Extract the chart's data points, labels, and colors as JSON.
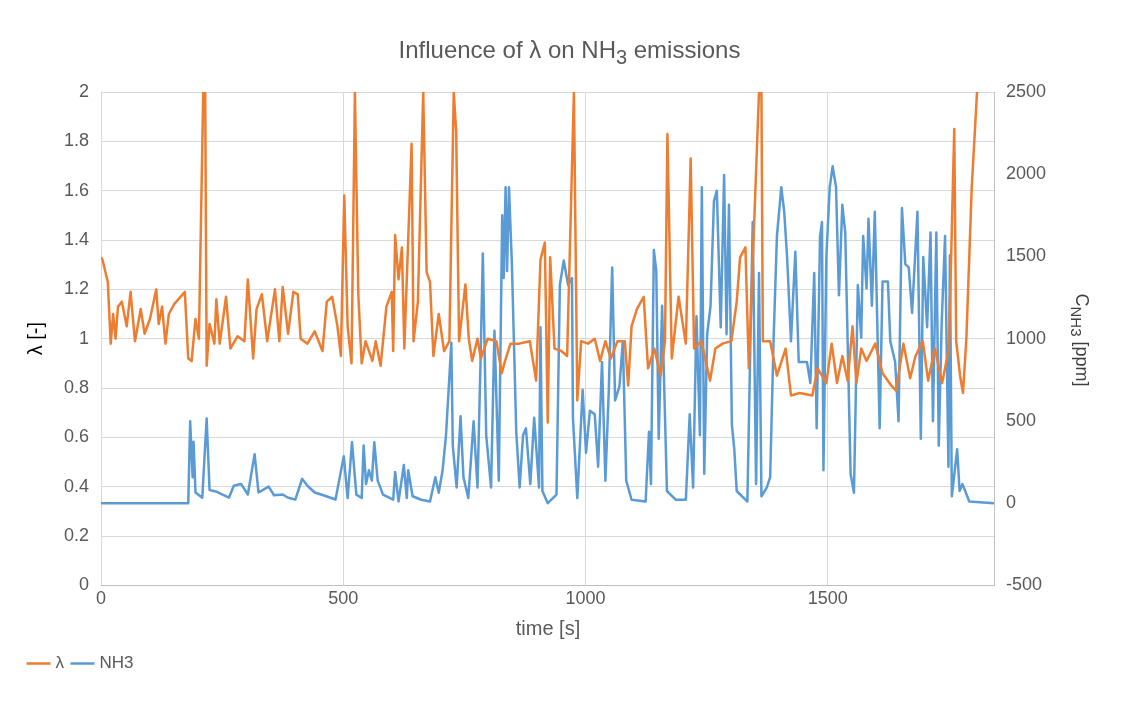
{
  "chart_data": {
    "type": "line",
    "title": "Influence of λ on NH$_{3}$ emissions",
    "xlabel": "time [s]",
    "ylabel": "λ [-]",
    "y2label": "C$_{NH3}$ [ppm]",
    "xlim": [
      0,
      1845
    ],
    "xticks": [
      0,
      500,
      1000,
      1500
    ],
    "ylim": [
      0,
      2
    ],
    "yticks": [
      0,
      0.2,
      0.4,
      0.6,
      0.8,
      1,
      1.2,
      1.4,
      1.6,
      1.8,
      2
    ],
    "y2lim": [
      -500,
      2500
    ],
    "y2ticks": [
      -500,
      0,
      500,
      1000,
      1500,
      2000,
      2500
    ],
    "grid": true,
    "legend": "bottom left",
    "marker": "none",
    "line_style": "solid",
    "series": [
      {
        "name": "λ",
        "color": "#ed7d31",
        "x": [
          0,
          3,
          14,
          20,
          25,
          30,
          35,
          43,
          53,
          61,
          70,
          82,
          90,
          101,
          114,
          119,
          126,
          133,
          140,
          151,
          173,
          180,
          187,
          195,
          202,
          211,
          215,
          218,
          224,
          234,
          238,
          245,
          258,
          267,
          282,
          296,
          303,
          314,
          321,
          332,
          343,
          359,
          368,
          375,
          386,
          397,
          406,
          412,
          426,
          441,
          457,
          466,
          477,
          488,
          495,
          502,
          509,
          517,
          524,
          531,
          538,
          546,
          560,
          567,
          577,
          589,
          600,
          603,
          607,
          614,
          621,
          626,
          641,
          645,
          654,
          665,
          672,
          679,
          686,
          697,
          708,
          719,
          728,
          733,
          739,
          752,
          759,
          766,
          777,
          784,
          798,
          816,
          827,
          834,
          845,
          863,
          885,
          898,
          907,
          916,
          922,
          927,
          936,
          950,
          962,
          976,
          983,
          991,
          1005,
          1019,
          1030,
          1041,
          1052,
          1066,
          1081,
          1088,
          1095,
          1106,
          1120,
          1129,
          1142,
          1155,
          1164,
          1169,
          1178,
          1192,
          1207,
          1217,
          1224,
          1239,
          1257,
          1268,
          1283,
          1301,
          1312,
          1319,
          1330,
          1337,
          1358,
          1363,
          1366,
          1381,
          1395,
          1413,
          1424,
          1442,
          1468,
          1479,
          1497,
          1508,
          1519,
          1530,
          1541,
          1551,
          1559,
          1569,
          1580,
          1598,
          1613,
          1631,
          1641,
          1656,
          1670,
          1681,
          1696,
          1707,
          1721,
          1736,
          1750,
          1761,
          1765,
          1773,
          1779,
          1786,
          1797,
          1808
        ],
        "values": [
          1.33,
          1.32,
          1.23,
          0.98,
          1.1,
          1.0,
          1.13,
          1.15,
          1.05,
          1.19,
          0.99,
          1.12,
          1.02,
          1.08,
          1.2,
          1.06,
          1.13,
          0.98,
          1.1,
          1.14,
          1.19,
          0.92,
          0.91,
          1.08,
          1.0,
          2,
          2,
          0.89,
          1.06,
          0.98,
          1.16,
          0.98,
          1.17,
          0.96,
          1.01,
          0.99,
          1.24,
          0.92,
          1.12,
          1.18,
          0.99,
          1.2,
          0.99,
          1.21,
          1.02,
          1.19,
          1.18,
          1.0,
          0.98,
          1.03,
          0.95,
          1.15,
          1.17,
          1.05,
          0.93,
          1.58,
          1.05,
          0.9,
          2,
          1.18,
          0.9,
          0.99,
          0.91,
          0.99,
          0.89,
          1.13,
          1.19,
          0.95,
          1.42,
          1.24,
          1.37,
          0.96,
          1.79,
          0.99,
          1.15,
          2,
          1.27,
          1.23,
          0.93,
          1.1,
          0.95,
          0.99,
          2,
          1.84,
          0.99,
          1.22,
          1.0,
          0.91,
          1.0,
          0.92,
          1.0,
          0.99,
          0.86,
          0.91,
          0.98,
          0.98,
          0.99,
          0.83,
          1.32,
          1.39,
          0.66,
          1.33,
          0.96,
          0.95,
          0.93,
          2,
          0.75,
          0.99,
          0.98,
          1.0,
          0.91,
          0.99,
          0.92,
          0.99,
          0.99,
          0.81,
          1.05,
          1.12,
          1.17,
          0.88,
          0.96,
          0.85,
          0.99,
          1.83,
          0.92,
          1.17,
          0.98,
          1.73,
          0.96,
          0.99,
          0.83,
          0.96,
          0.98,
          0.99,
          1.15,
          1.33,
          1.37,
          0.88,
          2,
          2,
          0.99,
          0.99,
          0.85,
          0.96,
          0.77,
          0.78,
          0.77,
          0.88,
          0.82,
          0.98,
          0.82,
          0.93,
          0.83,
          1.05,
          0.82,
          0.96,
          0.91,
          0.98,
          0.86,
          0.81,
          0.79,
          0.98,
          0.84,
          0.93,
          0.99,
          0.83,
          0.96,
          0.82,
          0.96,
          1.85,
          0.99,
          0.85,
          0.78,
          1.0,
          1.61,
          2
        ]
      },
      {
        "name": "NH3",
        "color": "#5b9bd5",
        "axis": "y2",
        "x": [
          0,
          180,
          184,
          189,
          191,
          195,
          209,
          218,
          224,
          239,
          264,
          274,
          289,
          303,
          317,
          325,
          346,
          357,
          375,
          386,
          401,
          415,
          426,
          441,
          459,
          484,
          501,
          509,
          518,
          527,
          538,
          542,
          547,
          553,
          559,
          564,
          571,
          582,
          603,
          607,
          614,
          625,
          631,
          634,
          643,
          661,
          679,
          690,
          697,
          705,
          712,
          723,
          726,
          734,
          742,
          748,
          758,
          769,
          777,
          783,
          788,
          795,
          805,
          812,
          821,
          828,
          831,
          835,
          838,
          842,
          848,
          857,
          864,
          871,
          877,
          886,
          894,
          904,
          907,
          911,
          922,
          940,
          947,
          955,
          964,
          972,
          974,
          983,
          989,
          994,
          1001,
          1009,
          1019,
          1026,
          1034,
          1041,
          1048,
          1055,
          1061,
          1070,
          1077,
          1084,
          1095,
          1124,
          1131,
          1135,
          1141,
          1146,
          1151,
          1158,
          1168,
          1186,
          1207,
          1215,
          1222,
          1229,
          1236,
          1240,
          1245,
          1251,
          1258,
          1265,
          1271,
          1279,
          1286,
          1291,
          1296,
          1302,
          1307,
          1312,
          1334,
          1345,
          1352,
          1358,
          1363,
          1374,
          1381,
          1388,
          1395,
          1404,
          1410,
          1416,
          1424,
          1433,
          1440,
          1450,
          1457,
          1464,
          1472,
          1477,
          1484,
          1488,
          1491,
          1497,
          1504,
          1510,
          1517,
          1523,
          1530,
          1536,
          1547,
          1554,
          1562,
          1569,
          1573,
          1580,
          1584,
          1591,
          1597,
          1607,
          1613,
          1624,
          1629,
          1639,
          1646,
          1653,
          1660,
          1667,
          1674,
          1685,
          1692,
          1697,
          1705,
          1712,
          1717,
          1724,
          1729,
          1735,
          1742,
          1749,
          1752,
          1756,
          1767,
          1772,
          1778,
          1792,
          1843
        ],
        "values": [
          0,
          0,
          498,
          158,
          373,
          65,
          33,
          515,
          80,
          69,
          33,
          106,
          117,
          53,
          298,
          65,
          101,
          48,
          53,
          33,
          22,
          148,
          106,
          65,
          48,
          22,
          285,
          31,
          371,
          52,
          31,
          350,
          116,
          200,
          137,
          371,
          137,
          52,
          21,
          190,
          10,
          232,
          31,
          200,
          42,
          21,
          10,
          158,
          63,
          200,
          413,
          975,
          350,
          95,
          529,
          158,
          31,
          498,
          95,
          826,
          1518,
          413,
          95,
          1049,
          137,
          1751,
          1369,
          1921,
          1412,
          1921,
          1454,
          434,
          95,
          413,
          455,
          116,
          519,
          95,
          1070,
          74,
          0,
          52,
          1327,
          1475,
          1327,
          1369,
          519,
          31,
          392,
          689,
          307,
          562,
          540,
          222,
          858,
          137,
          689,
          1433,
          625,
          710,
          985,
          137,
          21,
          10,
          434,
          116,
          1539,
          1412,
          392,
          1200,
          74,
          21,
          21,
          540,
          95,
          1136,
          413,
          1921,
          179,
          1027,
          1200,
          1836,
          1900,
          1070,
          1995,
          1027,
          1815,
          477,
          328,
          74,
          10,
          1709,
          116,
          1400,
          42,
          95,
          158,
          985,
          1624,
          1921,
          1772,
          1497,
          985,
          1528,
          858,
          858,
          858,
          731,
          1400,
          455,
          1624,
          1709,
          200,
          1497,
          1921,
          2048,
          1921,
          1264,
          1815,
          1645,
          179,
          63,
          1327,
          1006,
          1624,
          1306,
          1730,
          1200,
          1772,
          455,
          1348,
          1348,
          985,
          858,
          498,
          1794,
          1454,
          1433,
          1157,
          1772,
          392,
          1497,
          1070,
          1645,
          498,
          1645,
          350,
          1091,
          1624,
          222,
          1507,
          42,
          328,
          74,
          116,
          10,
          0
        ]
      }
    ]
  }
}
